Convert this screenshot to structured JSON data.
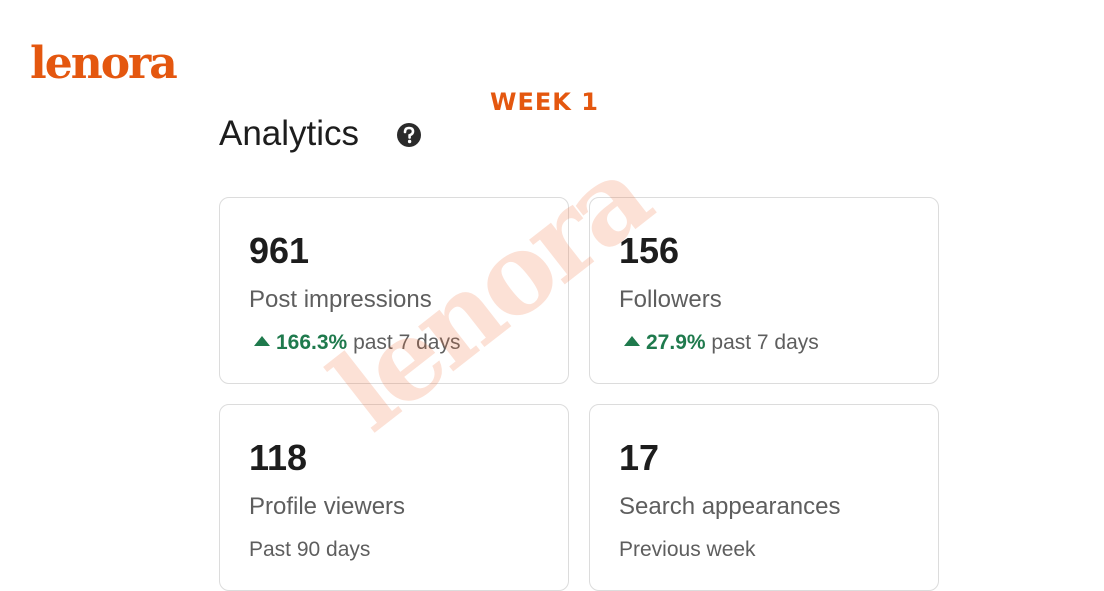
{
  "brand": {
    "logo": "lenora",
    "watermark": "lenora"
  },
  "header": {
    "week": "WEEK 1",
    "title": "Analytics"
  },
  "cards": [
    {
      "value": "961",
      "label": "Post impressions",
      "change": "166.3%",
      "period": "past 7 days"
    },
    {
      "value": "156",
      "label": "Followers",
      "change": "27.9%",
      "period": "past 7 days"
    },
    {
      "value": "118",
      "label": "Profile viewers",
      "period": "Past 90 days"
    },
    {
      "value": "17",
      "label": "Search appearances",
      "period": "Previous week"
    }
  ]
}
